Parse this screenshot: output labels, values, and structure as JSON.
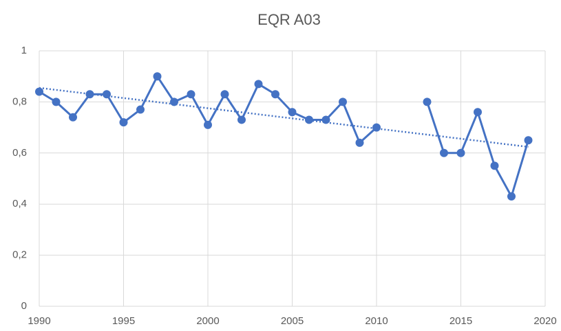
{
  "chart_data": {
    "type": "line",
    "title": "EQR A03",
    "x": [
      1990,
      1991,
      1992,
      1993,
      1994,
      1995,
      1996,
      1997,
      1998,
      1999,
      2000,
      2001,
      2002,
      2003,
      2004,
      2005,
      2006,
      2007,
      2008,
      2009,
      2010,
      2011,
      2012,
      2013,
      2014,
      2015,
      2016,
      2017,
      2018,
      2019
    ],
    "series": [
      {
        "name": "EQR A03",
        "color": "#4472c4",
        "values": [
          0.84,
          0.8,
          0.74,
          0.83,
          0.83,
          0.72,
          0.77,
          0.9,
          0.8,
          0.83,
          0.71,
          0.83,
          0.73,
          0.87,
          0.83,
          0.76,
          0.73,
          0.73,
          0.8,
          0.64,
          0.7,
          null,
          null,
          0.8,
          0.6,
          0.6,
          0.76,
          0.55,
          0.43,
          0.65
        ]
      }
    ],
    "trend": {
      "x": [
        1990,
        2019
      ],
      "values": [
        0.855,
        0.624
      ],
      "color": "#4472c4"
    },
    "xlim": [
      1990,
      2020
    ],
    "xticks": [
      1990,
      1995,
      2000,
      2005,
      2010,
      2015,
      2020
    ],
    "ylim": [
      0,
      1
    ],
    "yticks": [
      0,
      {
        "value": 0.2,
        "label": "0,2"
      },
      {
        "value": 0.4,
        "label": "0,4"
      },
      {
        "value": 0.6,
        "label": "0,6"
      },
      {
        "value": 0.8,
        "label": "0,8"
      },
      1
    ],
    "grid": true
  }
}
